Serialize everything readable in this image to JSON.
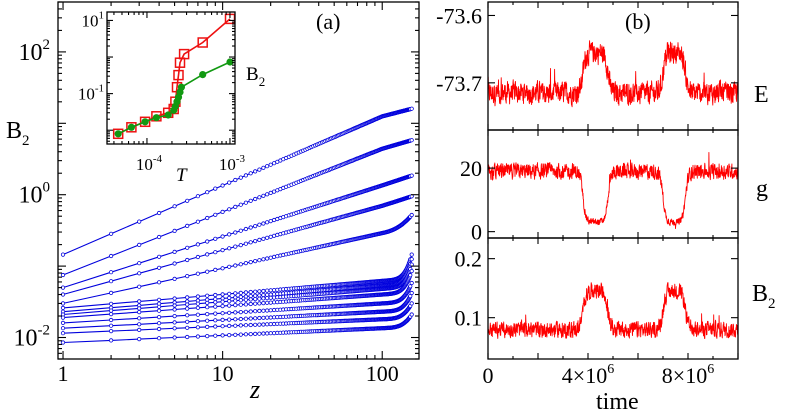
{
  "chart_data": [
    {
      "id": "panel_a",
      "type": "line",
      "panel_label": "(a)",
      "xlabel": "z",
      "ylabel": "B",
      "ylabel_sub": "2",
      "xscale": "log",
      "yscale": "log",
      "xlim": [
        0.93,
        170
      ],
      "ylim": [
        0.005,
        500
      ],
      "xticks": [
        {
          "v": 1,
          "t": "1"
        },
        {
          "v": 10,
          "t": "10"
        },
        {
          "v": 100,
          "t": "100"
        }
      ],
      "yticks": [
        {
          "v": 0.01,
          "base": "10",
          "exp": "-2"
        },
        {
          "v": 1,
          "base": "10",
          "exp": "0"
        },
        {
          "v": 100,
          "base": "10",
          "exp": "2"
        }
      ],
      "color": "#0000dd",
      "curves": [
        {
          "y1": 0.145,
          "y100": 12.5,
          "yend": 16.0,
          "rise": 0.0
        },
        {
          "y1": 0.075,
          "y100": 4.4,
          "yend": 5.8,
          "rise": 0.0
        },
        {
          "y1": 0.05,
          "y100": 1.35,
          "yend": 1.85,
          "rise": 0.05
        },
        {
          "y1": 0.04,
          "y100": 0.7,
          "yend": 0.95,
          "rise": 0.08
        },
        {
          "y1": 0.03,
          "y100": 0.29,
          "yend": 0.52,
          "rise": 0.5
        },
        {
          "y1": 0.026,
          "y100": 0.062,
          "yend": 0.145,
          "rise": 1.2
        },
        {
          "y1": 0.023,
          "y100": 0.054,
          "yend": 0.125,
          "rise": 1.2
        },
        {
          "y1": 0.021,
          "y100": 0.048,
          "yend": 0.105,
          "rise": 1.2
        },
        {
          "y1": 0.019,
          "y100": 0.04,
          "yend": 0.085,
          "rise": 1.1
        },
        {
          "y1": 0.016,
          "y100": 0.03,
          "yend": 0.058,
          "rise": 1.0
        },
        {
          "y1": 0.0135,
          "y100": 0.023,
          "yend": 0.042,
          "rise": 1.0
        },
        {
          "y1": 0.0115,
          "y100": 0.018,
          "yend": 0.03,
          "rise": 0.9
        },
        {
          "y1": 0.0085,
          "y100": 0.0135,
          "yend": 0.021,
          "rise": 0.9
        }
      ]
    },
    {
      "id": "inset",
      "type": "line",
      "xlabel": "T",
      "ylabel": "B",
      "ylabel_sub": "2",
      "xscale": "log",
      "yscale": "log",
      "xlim": [
        3.3e-05,
        0.00115
      ],
      "ylim": [
        0.0042,
        17
      ],
      "xticks": [
        {
          "v": 0.0001,
          "base": "10",
          "exp": "-4"
        },
        {
          "v": 0.001,
          "base": "10",
          "exp": "-3"
        }
      ],
      "yticks": [
        {
          "v": 0.1,
          "base": "10",
          "exp": "-1"
        },
        {
          "v": 10,
          "base": "10",
          "exp": "1"
        }
      ],
      "series": [
        {
          "color": "#ee1111",
          "marker": "square",
          "x": [
            4.5e-05,
            6.5e-05,
            9.5e-05,
            0.00013,
            0.00018,
            0.00021,
            0.00022,
            0.00023,
            0.00024,
            0.00025,
            0.00028,
            0.00047,
            0.001
          ],
          "y": [
            0.008,
            0.012,
            0.017,
            0.024,
            0.03,
            0.038,
            0.06,
            0.15,
            0.32,
            0.7,
            1.2,
            2.5,
            11.0
          ]
        },
        {
          "color": "#119911",
          "marker": "circle",
          "x": [
            4.5e-05,
            6.5e-05,
            9.5e-05,
            0.00013,
            0.00018,
            0.00021,
            0.00022,
            0.00023,
            0.00024,
            0.00025,
            0.00026,
            0.00047,
            0.001
          ],
          "y": [
            0.008,
            0.012,
            0.017,
            0.022,
            0.026,
            0.035,
            0.045,
            0.06,
            0.08,
            0.11,
            0.15,
            0.33,
            0.73
          ]
        }
      ]
    },
    {
      "id": "panel_b",
      "type": "line",
      "panel_label": "(b)",
      "xlabel": "time",
      "xlim": [
        0,
        10000000
      ],
      "xticks": [
        {
          "v": 0,
          "t": "0"
        },
        {
          "v": 4000000,
          "pre": "4×10",
          "exp": "6"
        },
        {
          "v": 8000000,
          "pre": "8×10",
          "exp": "6"
        }
      ],
      "color": "#ff0000",
      "transitions": [
        3800000,
        4800000,
        7000000,
        7900000
      ],
      "subplots": [
        {
          "name": "E",
          "ylim": [
            -73.77,
            -73.58
          ],
          "yticks": [
            {
              "v": -73.6,
              "t": "-73.6"
            },
            {
              "v": -73.7,
              "t": "-73.7"
            }
          ],
          "low": -73.715,
          "high": -73.655,
          "noise": 0.022
        },
        {
          "name": "g",
          "ylim": [
            -2,
            32
          ],
          "yticks": [
            {
              "v": 0,
              "t": "0"
            },
            {
              "v": 20,
              "t": "20"
            }
          ],
          "low": 3,
          "high": 19,
          "noise": 3.2
        },
        {
          "name": "B",
          "name_sub": "2",
          "ylim": [
            0.03,
            0.235
          ],
          "yticks": [
            {
              "v": 0.1,
              "t": "0.1"
            },
            {
              "v": 0.2,
              "t": "0.2"
            }
          ],
          "low": 0.08,
          "high": 0.145,
          "noise": 0.018
        }
      ]
    }
  ]
}
